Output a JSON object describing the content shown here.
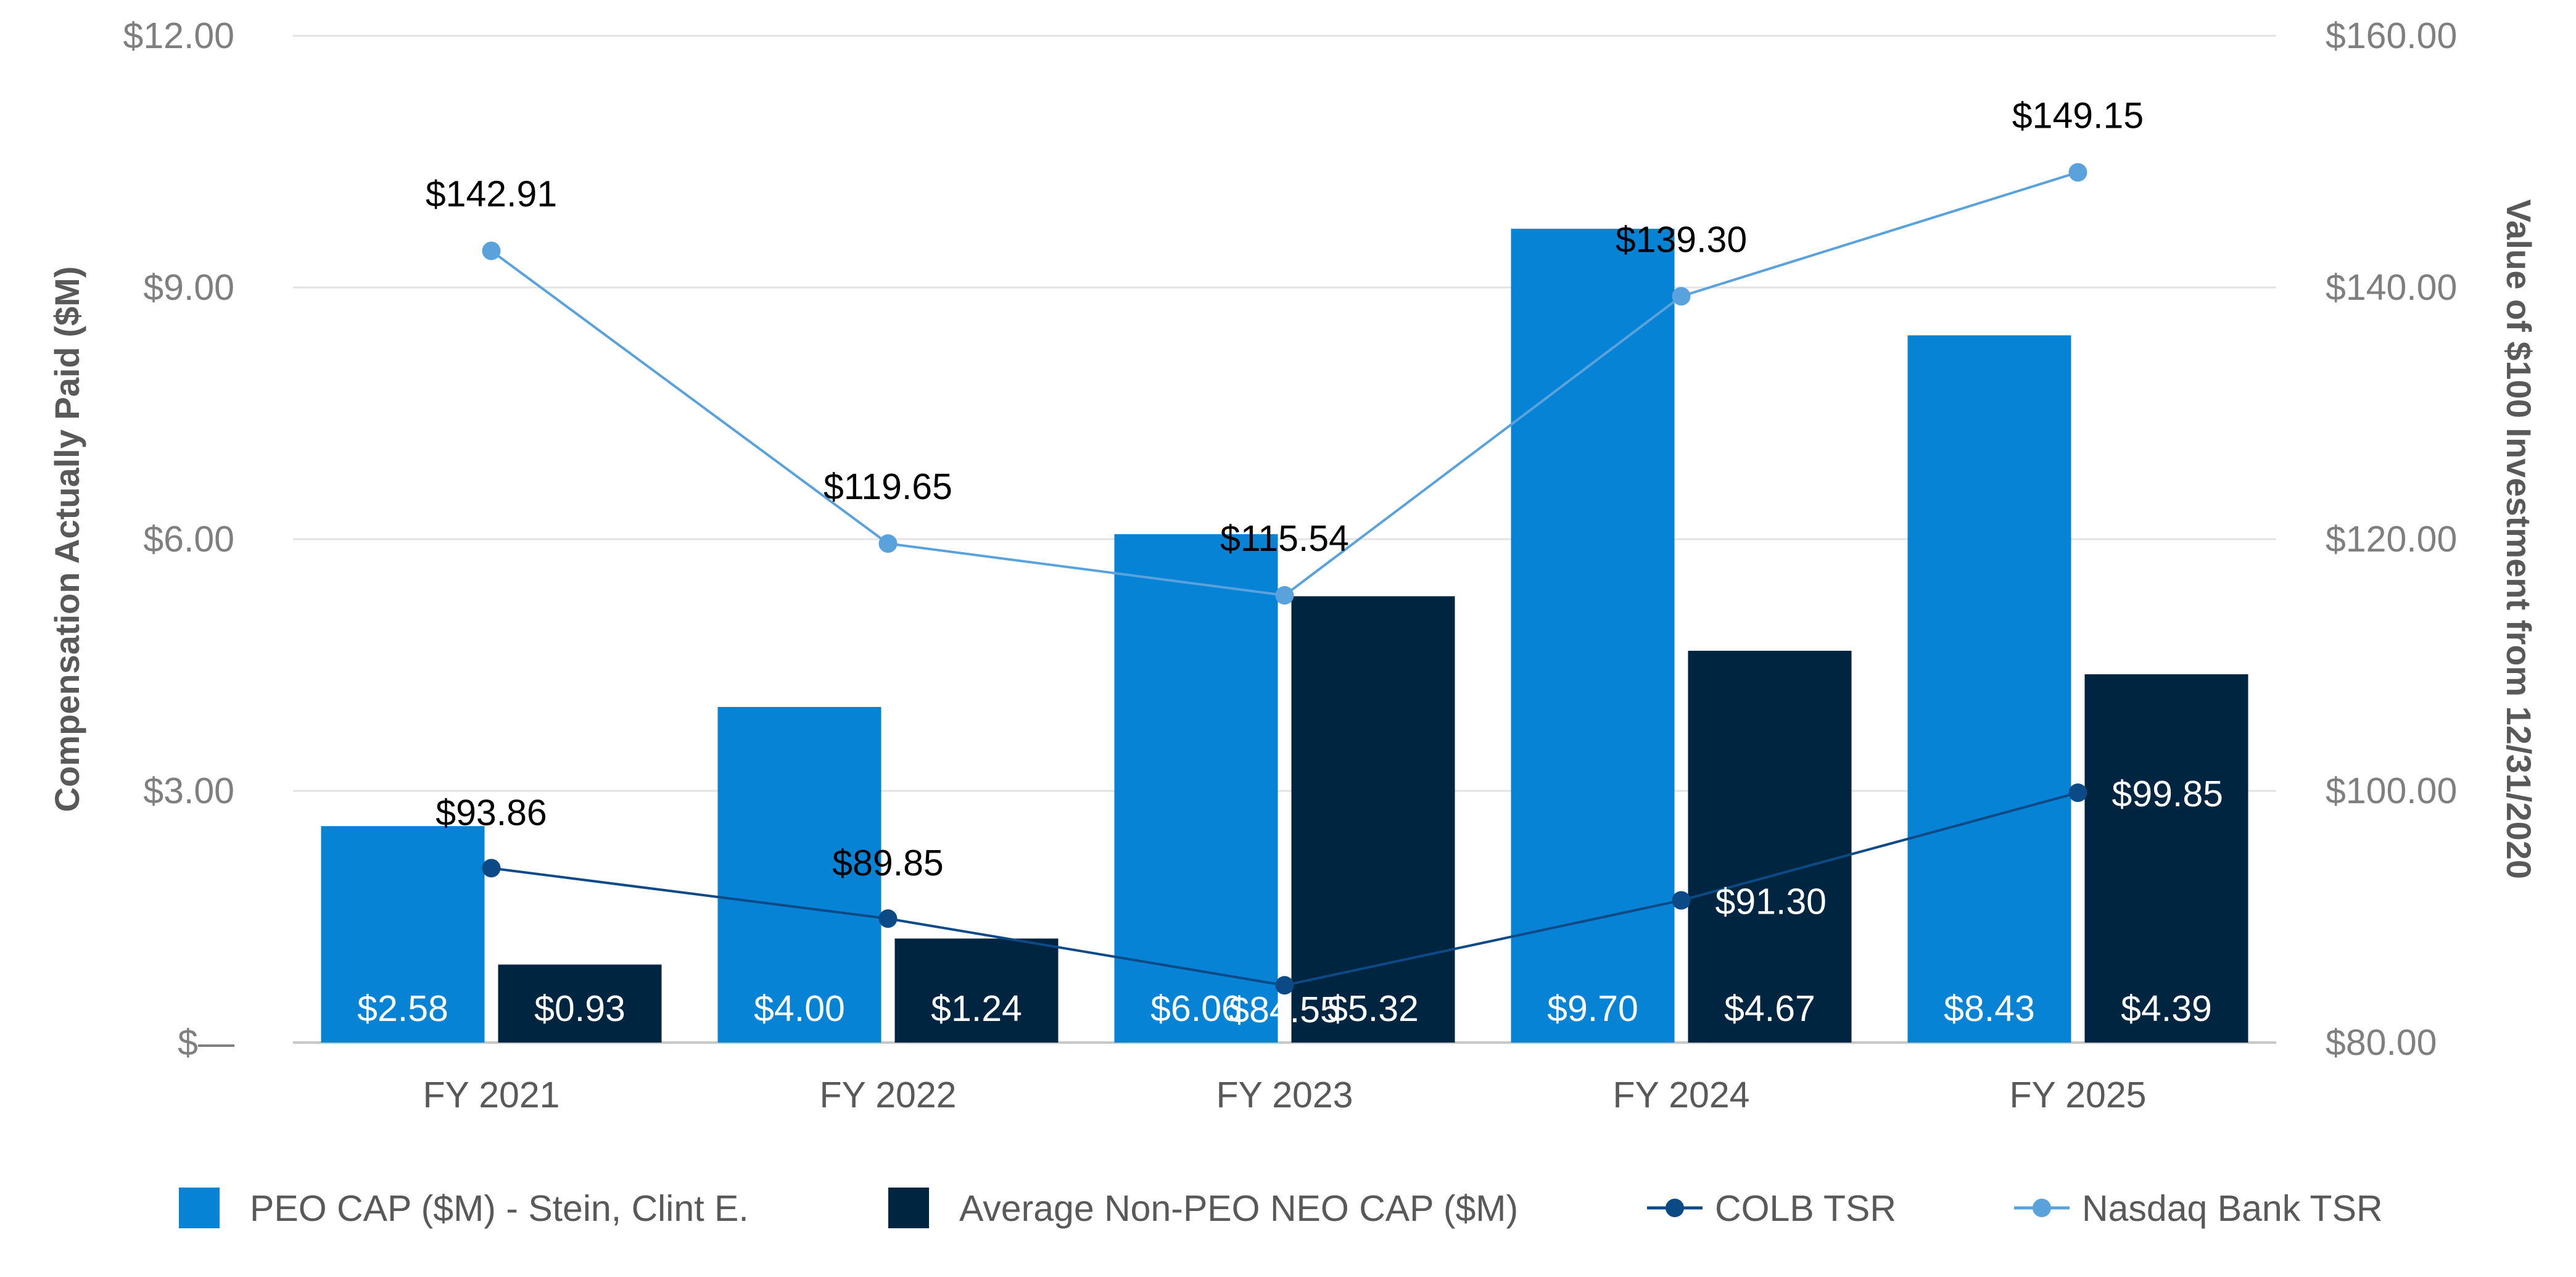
{
  "chart_data": {
    "type": "bar",
    "categories": [
      "FY 2021",
      "FY 2022",
      "FY 2023",
      "FY 2024",
      "FY 2025"
    ],
    "left_axis": {
      "title": "Compensation Actually Paid ($M)",
      "ylim": [
        0,
        12
      ],
      "ticks": [
        0,
        3,
        6,
        9,
        12
      ],
      "tick_labels": [
        "$—",
        "$3.00",
        "$6.00",
        "$9.00",
        "$12.00"
      ]
    },
    "right_axis": {
      "title": "Value of $100 Investment from 12/31/2020",
      "ylim": [
        80,
        160
      ],
      "ticks": [
        80,
        100,
        120,
        140,
        160
      ],
      "tick_labels": [
        "$80.00",
        "$100.00",
        "$120.00",
        "$140.00",
        "$160.00"
      ]
    },
    "grid": true,
    "legend_position": "bottom",
    "series": [
      {
        "name": "PEO CAP ($M) - Stein, Clint E.",
        "type": "bar",
        "axis": "left",
        "color": "#0783d6",
        "values": [
          2.58,
          4.0,
          6.06,
          9.7,
          8.43
        ],
        "labels": [
          "$2.58",
          "$4.00",
          "$6.06",
          "$9.70",
          "$8.43"
        ]
      },
      {
        "name": "Average Non-PEO NEO CAP ($M)",
        "type": "bar",
        "axis": "left",
        "color": "#002540",
        "values": [
          0.93,
          1.24,
          5.32,
          4.67,
          4.39
        ],
        "labels": [
          "$0.93",
          "$1.24",
          "$5.32",
          "$4.67",
          "$4.39"
        ]
      },
      {
        "name": "COLB TSR",
        "type": "line",
        "axis": "right",
        "color": "#0c4a86",
        "values": [
          93.86,
          89.85,
          84.55,
          91.3,
          99.85
        ],
        "labels": [
          "$93.86",
          "$89.85",
          "$84.55",
          "$91.30",
          "$99.85"
        ]
      },
      {
        "name": "Nasdaq Bank TSR",
        "type": "line",
        "axis": "right",
        "color": "#5aa2dc",
        "values": [
          142.91,
          119.65,
          115.54,
          139.3,
          149.15
        ],
        "labels": [
          "$142.91",
          "$119.65",
          "$115.54",
          "$139.30",
          "$149.15"
        ]
      }
    ]
  }
}
